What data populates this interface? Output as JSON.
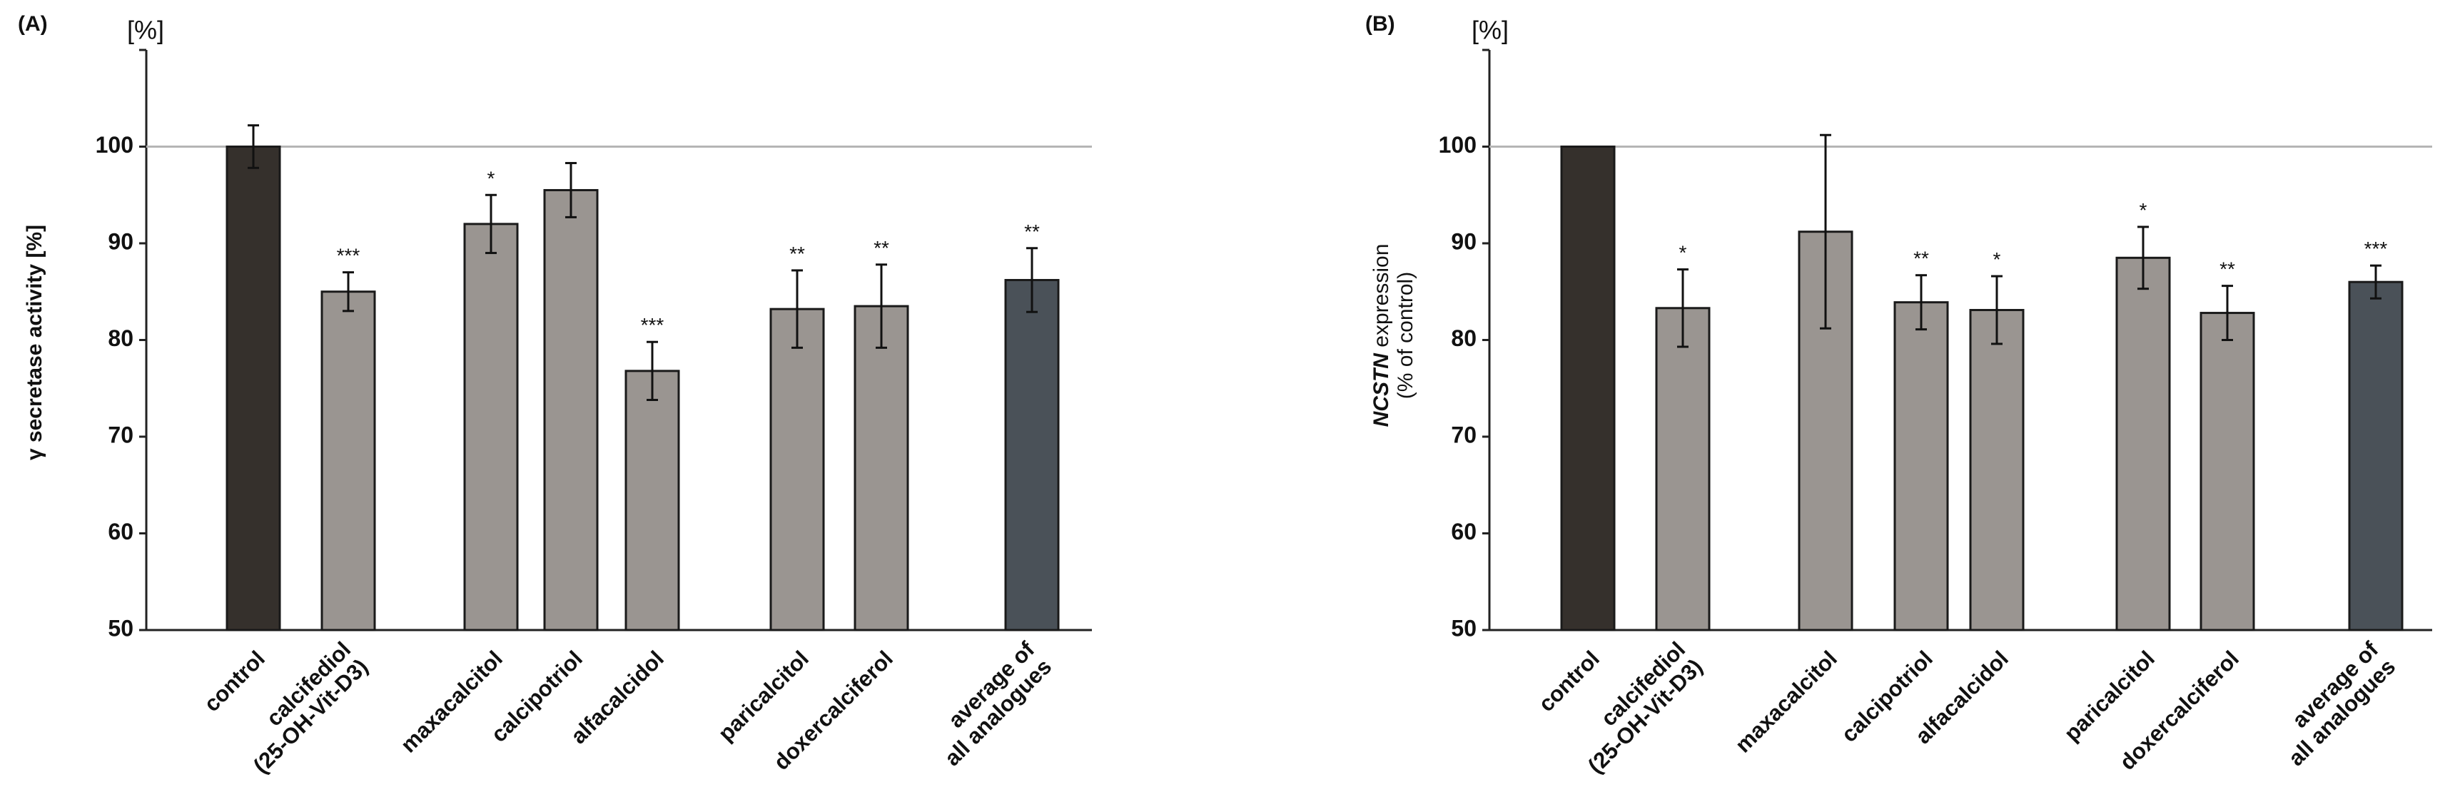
{
  "chart_data": [
    {
      "type": "bar",
      "panel_label": "(A)",
      "unit_label": "[%]",
      "ylabel": "γ secretase activity [%]",
      "ylim": [
        50,
        110
      ],
      "yticks": [
        "50",
        "60",
        "70",
        "80",
        "90",
        "100"
      ],
      "reference_line": 100,
      "categories": [
        {
          "lines": [
            "control"
          ],
          "value": 100,
          "error": 2.2,
          "sig": "",
          "color": "#35302c"
        },
        {
          "lines": [
            "calcifediol",
            "(25-OH-Vit-D3)"
          ],
          "value": 85,
          "error": 2.0,
          "sig": "***",
          "color": "#9a9591"
        },
        {
          "lines": [
            "maxacalcitol"
          ],
          "value": 92,
          "error": 3.0,
          "sig": "*",
          "color": "#9a9591"
        },
        {
          "lines": [
            "calcipotriol"
          ],
          "value": 95.5,
          "error": 2.8,
          "sig": "",
          "color": "#9a9591"
        },
        {
          "lines": [
            "alfacalcidol"
          ],
          "value": 76.8,
          "error": 3.0,
          "sig": "***",
          "color": "#9a9591"
        },
        {
          "lines": [
            "paricalcitol"
          ],
          "value": 83.2,
          "error": 4.0,
          "sig": "**",
          "color": "#9a9591"
        },
        {
          "lines": [
            "doxercalciferol"
          ],
          "value": 83.5,
          "error": 4.3,
          "sig": "**",
          "color": "#9a9591"
        },
        {
          "lines": [
            "average of",
            "all analogues"
          ],
          "value": 86.2,
          "error": 3.3,
          "sig": "**",
          "color": "#4a5158"
        }
      ]
    },
    {
      "type": "bar",
      "panel_label": "(B)",
      "unit_label": "[%]",
      "ylabel_italic": "NCSTN",
      "ylabel_rest": " expression",
      "ylabel_line2": "(% of control)",
      "ylim": [
        50,
        110
      ],
      "yticks": [
        "50",
        "60",
        "70",
        "80",
        "90",
        "100"
      ],
      "reference_line": 100,
      "categories": [
        {
          "lines": [
            "control"
          ],
          "value": 100,
          "error": 0,
          "sig": "",
          "color": "#35302c"
        },
        {
          "lines": [
            "calcifediol",
            "(25-OH-Vit-D3)"
          ],
          "value": 83.3,
          "error": 4.0,
          "sig": "*",
          "color": "#9a9591"
        },
        {
          "lines": [
            "maxacalcitol"
          ],
          "value": 91.2,
          "error": 10.0,
          "sig": "",
          "color": "#9a9591"
        },
        {
          "lines": [
            "calcipotriol"
          ],
          "value": 83.9,
          "error": 2.8,
          "sig": "**",
          "color": "#9a9591"
        },
        {
          "lines": [
            "alfacalcidol"
          ],
          "value": 83.1,
          "error": 3.5,
          "sig": "*",
          "color": "#9a9591"
        },
        {
          "lines": [
            "paricalcitol"
          ],
          "value": 88.5,
          "error": 3.2,
          "sig": "*",
          "color": "#9a9591"
        },
        {
          "lines": [
            "doxercalciferol"
          ],
          "value": 82.8,
          "error": 2.8,
          "sig": "**",
          "color": "#9a9591"
        },
        {
          "lines": [
            "average of",
            "all analogues"
          ],
          "value": 86,
          "error": 1.7,
          "sig": "***",
          "color": "#4a5158"
        }
      ]
    }
  ]
}
